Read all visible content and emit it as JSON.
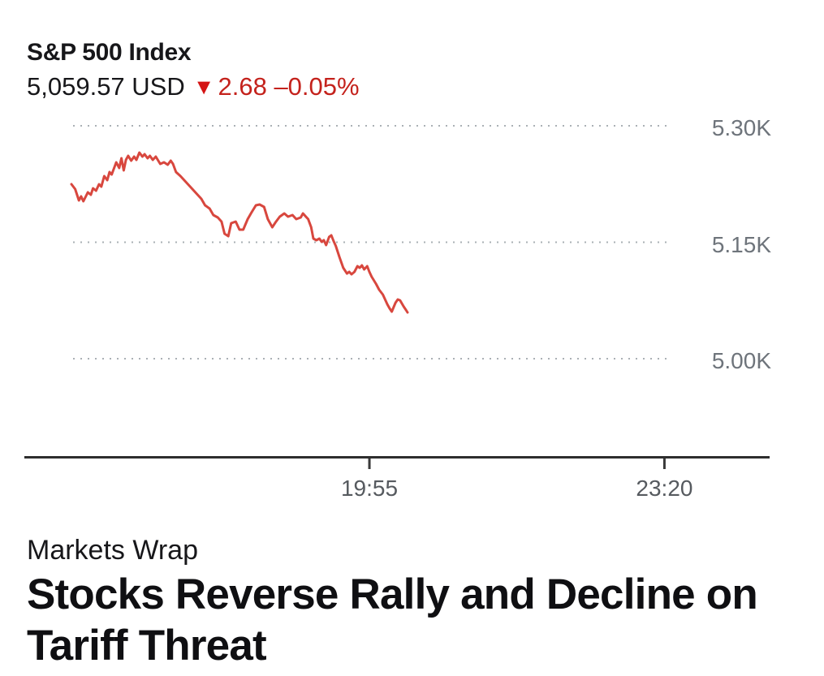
{
  "header": {
    "title": "S&P 500 Index",
    "price": "5,059.57",
    "currency": "USD",
    "price_line": "5,059.57 USD",
    "direction_icon": "down-triangle",
    "change": "2.68",
    "change_pct": "–0.05%"
  },
  "article": {
    "eyebrow": "Markets Wrap",
    "headline_line1": "Stocks Reverse Rally and Decline on",
    "headline_line2": "Tariff Threat"
  },
  "colors": {
    "line_red": "#d8473e",
    "change_red": "#c4221c",
    "triangle_red": "#d41414",
    "grid_gray": "#aab0b5",
    "axis_dark": "#2e2e2e",
    "tick_dark": "#3a3a3a",
    "y_label_gray": "#6e747b",
    "x_label_gray": "#565a5f",
    "text_dark": "#17171a",
    "headline_dark": "#0f0f12"
  },
  "chart_data": {
    "type": "line",
    "title": "S&P 500 Index",
    "unit": "USD",
    "last_price": 5059.57,
    "change": -2.68,
    "change_pct": -0.05,
    "grid": "dotted-horizontal",
    "legend": false,
    "ylim": [
      4880,
      5325
    ],
    "y_ticks": [
      {
        "label": "5.30K",
        "value": 5300
      },
      {
        "label": "5.15K",
        "value": 5150
      },
      {
        "label": "5.00K",
        "value": 5000
      }
    ],
    "x_ticks": [
      {
        "label": "19:55",
        "pos": 0.462
      },
      {
        "label": "23:20",
        "pos": 0.857
      }
    ],
    "series": [
      {
        "name": "S&P 500 Index",
        "points": [
          [
            0.063,
            5224.7
          ],
          [
            0.068,
            5218.5
          ],
          [
            0.073,
            5203.8
          ],
          [
            0.076,
            5209.1
          ],
          [
            0.079,
            5202.8
          ],
          [
            0.085,
            5214.3
          ],
          [
            0.089,
            5211.1
          ],
          [
            0.092,
            5219.5
          ],
          [
            0.096,
            5216.4
          ],
          [
            0.1,
            5224.7
          ],
          [
            0.103,
            5221.6
          ],
          [
            0.107,
            5235.2
          ],
          [
            0.111,
            5230.0
          ],
          [
            0.114,
            5240.4
          ],
          [
            0.117,
            5237.3
          ],
          [
            0.123,
            5253.0
          ],
          [
            0.127,
            5245.6
          ],
          [
            0.13,
            5258.2
          ],
          [
            0.133,
            5242.5
          ],
          [
            0.136,
            5256.1
          ],
          [
            0.139,
            5261.3
          ],
          [
            0.143,
            5255.1
          ],
          [
            0.147,
            5260.3
          ],
          [
            0.15,
            5256.1
          ],
          [
            0.154,
            5265.5
          ],
          [
            0.158,
            5260.3
          ],
          [
            0.161,
            5263.4
          ],
          [
            0.165,
            5258.2
          ],
          [
            0.168,
            5261.3
          ],
          [
            0.172,
            5256.1
          ],
          [
            0.176,
            5260.3
          ],
          [
            0.182,
            5250.9
          ],
          [
            0.187,
            5253.0
          ],
          [
            0.192,
            5249.8
          ],
          [
            0.196,
            5255.1
          ],
          [
            0.199,
            5250.9
          ],
          [
            0.203,
            5240.4
          ],
          [
            0.209,
            5235.2
          ],
          [
            0.214,
            5230.0
          ],
          [
            0.22,
            5223.7
          ],
          [
            0.225,
            5218.5
          ],
          [
            0.232,
            5211.1
          ],
          [
            0.237,
            5205.9
          ],
          [
            0.242,
            5197.6
          ],
          [
            0.248,
            5193.4
          ],
          [
            0.253,
            5185.0
          ],
          [
            0.259,
            5181.9
          ],
          [
            0.264,
            5176.6
          ],
          [
            0.268,
            5161.0
          ],
          [
            0.273,
            5157.8
          ],
          [
            0.277,
            5174.6
          ],
          [
            0.283,
            5176.6
          ],
          [
            0.288,
            5166.2
          ],
          [
            0.293,
            5166.2
          ],
          [
            0.299,
            5179.8
          ],
          [
            0.304,
            5188.2
          ],
          [
            0.31,
            5197.6
          ],
          [
            0.315,
            5198.6
          ],
          [
            0.321,
            5195.5
          ],
          [
            0.326,
            5179.8
          ],
          [
            0.332,
            5169.3
          ],
          [
            0.337,
            5176.6
          ],
          [
            0.342,
            5182.9
          ],
          [
            0.348,
            5187.1
          ],
          [
            0.353,
            5182.9
          ],
          [
            0.359,
            5185.0
          ],
          [
            0.364,
            5179.8
          ],
          [
            0.37,
            5181.9
          ],
          [
            0.373,
            5187.1
          ],
          [
            0.377,
            5182.9
          ],
          [
            0.38,
            5179.8
          ],
          [
            0.384,
            5169.3
          ],
          [
            0.387,
            5154.7
          ],
          [
            0.391,
            5152.6
          ],
          [
            0.395,
            5154.7
          ],
          [
            0.398,
            5150.5
          ],
          [
            0.401,
            5152.6
          ],
          [
            0.404,
            5146.3
          ],
          [
            0.408,
            5156.8
          ],
          [
            0.411,
            5158.9
          ],
          [
            0.414,
            5151.6
          ],
          [
            0.417,
            5145.3
          ],
          [
            0.422,
            5130.7
          ],
          [
            0.427,
            5117.1
          ],
          [
            0.432,
            5109.7
          ],
          [
            0.435,
            5111.8
          ],
          [
            0.438,
            5108.7
          ],
          [
            0.442,
            5111.8
          ],
          [
            0.446,
            5119.2
          ],
          [
            0.449,
            5117.1
          ],
          [
            0.452,
            5120.2
          ],
          [
            0.455,
            5115.0
          ],
          [
            0.459,
            5119.2
          ],
          [
            0.462,
            5111.8
          ],
          [
            0.465,
            5105.6
          ],
          [
            0.471,
            5096.2
          ],
          [
            0.475,
            5088.8
          ],
          [
            0.48,
            5082.6
          ],
          [
            0.486,
            5070.0
          ],
          [
            0.489,
            5064.8
          ],
          [
            0.492,
            5060.6
          ],
          [
            0.497,
            5072.1
          ],
          [
            0.5,
            5076.3
          ],
          [
            0.503,
            5075.2
          ],
          [
            0.508,
            5066.9
          ],
          [
            0.511,
            5062.7
          ],
          [
            0.513,
            5059.6
          ]
        ]
      }
    ]
  }
}
